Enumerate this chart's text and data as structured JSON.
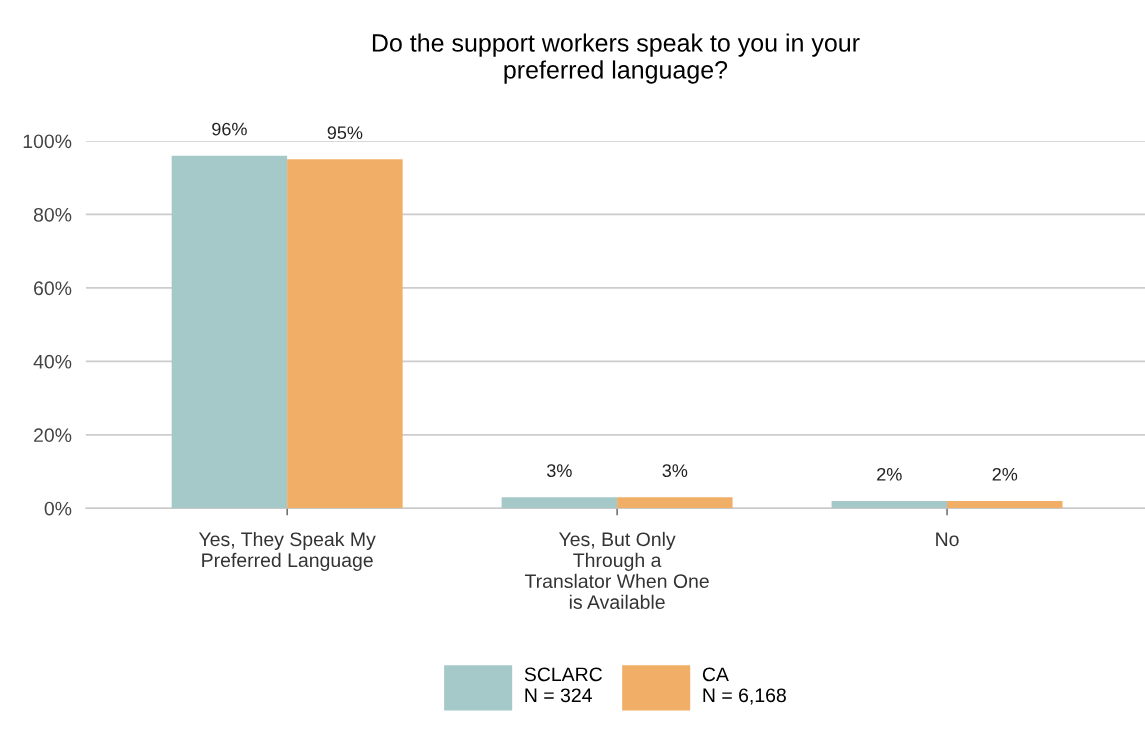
{
  "chart_data": {
    "type": "bar",
    "title": "Do the support workers speak to you in your\npreferred language?",
    "categories": [
      "Yes, They Speak My\nPreferred Language",
      "Yes, But Only\nThrough a\nTranslator When One\nis Available",
      "No"
    ],
    "series": [
      {
        "name": "SCLARC\nN = 324",
        "color": "#a5c9c8",
        "values": [
          96,
          3,
          2
        ],
        "value_labels": [
          "96%",
          "3%",
          "2%"
        ]
      },
      {
        "name": "CA\nN = 6,168",
        "color": "#f0ae67",
        "values": [
          95,
          3,
          2
        ],
        "value_labels": [
          "95%",
          "3%",
          "2%"
        ]
      }
    ],
    "ylim": [
      0,
      100
    ],
    "yticks": [
      {
        "value": 0,
        "label": "0%"
      },
      {
        "value": 20,
        "label": "20%"
      },
      {
        "value": 40,
        "label": "40%"
      },
      {
        "value": 60,
        "label": "60%"
      },
      {
        "value": 80,
        "label": "80%"
      },
      {
        "value": 100,
        "label": "100%"
      }
    ],
    "grid": "y",
    "legend": "bottom"
  }
}
